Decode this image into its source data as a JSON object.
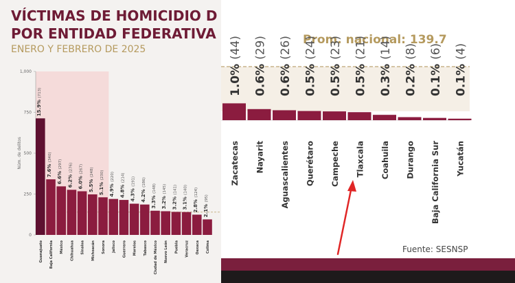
{
  "left_panel": {
    "title_line1": "VÍCTIMAS DE HOMICIDIO D",
    "title_line2": "POR ENTIDAD FEDERATIVA",
    "subtitle": "ENERO Y FEBRERO DE 2025"
  },
  "right_panel": {
    "prom_label": "Prom. nacional: 139.7",
    "source": "Fuente: SESNSP"
  },
  "colors": {
    "bar_dark": "#5e1030",
    "bar": "#8b1c3f",
    "highlight": "#f6d3d3",
    "avg_line": "#c8b48a"
  },
  "icons": [
    "red-arrow-annotation"
  ],
  "chart_data": [
    {
      "type": "bar",
      "title": "",
      "xlabel": "",
      "ylabel": "Núm. de delitos",
      "ylim": [
        0,
        1000
      ],
      "yticks": [
        "1,000",
        "750",
        "500",
        "250",
        "0"
      ],
      "average": 139.7,
      "categories": [
        "Guanajuato",
        "Baja California",
        "México",
        "Chihuahua",
        "Sinaloa",
        "Michoacán",
        "Sonora",
        "Jalisco",
        "Guerrero",
        "Morelos",
        "Tabasco",
        "Ciudad de México",
        "Nuevo León",
        "Puebla",
        "Veracruz",
        "Oaxaca",
        "Colima"
      ],
      "values": [
        713,
        340,
        297,
        276,
        267,
        248,
        230,
        220,
        214,
        191,
        186,
        148,
        145,
        141,
        140,
        124,
        95
      ],
      "pct_labels": [
        "15.9%",
        "7.6%",
        "6.6%",
        "6.2%",
        "6.0%",
        "5.5%",
        "5.1%",
        "4.9%",
        "4.8%",
        "4.3%",
        "4.2%",
        "3.3%",
        "3.2%",
        "3.2%",
        "3.1%",
        "2.8%",
        "2.1%"
      ],
      "count_labels": [
        "(713)",
        "(340)",
        "(297)",
        "(276)",
        "(267)",
        "(248)",
        "(230)",
        "(220)",
        "(214)",
        "(191)",
        "(186)",
        "(148)",
        "(145)",
        "(141)",
        "(140)",
        "(124)",
        "(95)"
      ]
    },
    {
      "type": "bar",
      "title": "",
      "categories": [
        "Zacatecas",
        "Nayarit",
        "Aguascalientes",
        "Querétaro",
        "Campeche",
        "Tlaxcala",
        "Coahuila",
        "Durango",
        "Baja California Sur",
        "Yucatán"
      ],
      "values": [
        44,
        29,
        26,
        24,
        23,
        21,
        14,
        8,
        6,
        4
      ],
      "pct_labels": [
        "1.0%",
        "0.6%",
        "0.6%",
        "0.5%",
        "0.5%",
        "0.5%",
        "0.3%",
        "0.2%",
        "0.1%",
        "0.1%"
      ],
      "count_labels": [
        "(44)",
        "(29)",
        "(26)",
        "(24)",
        "(23)",
        "(21)",
        "(14)",
        "(8)",
        "(6)",
        "(4)"
      ]
    }
  ]
}
